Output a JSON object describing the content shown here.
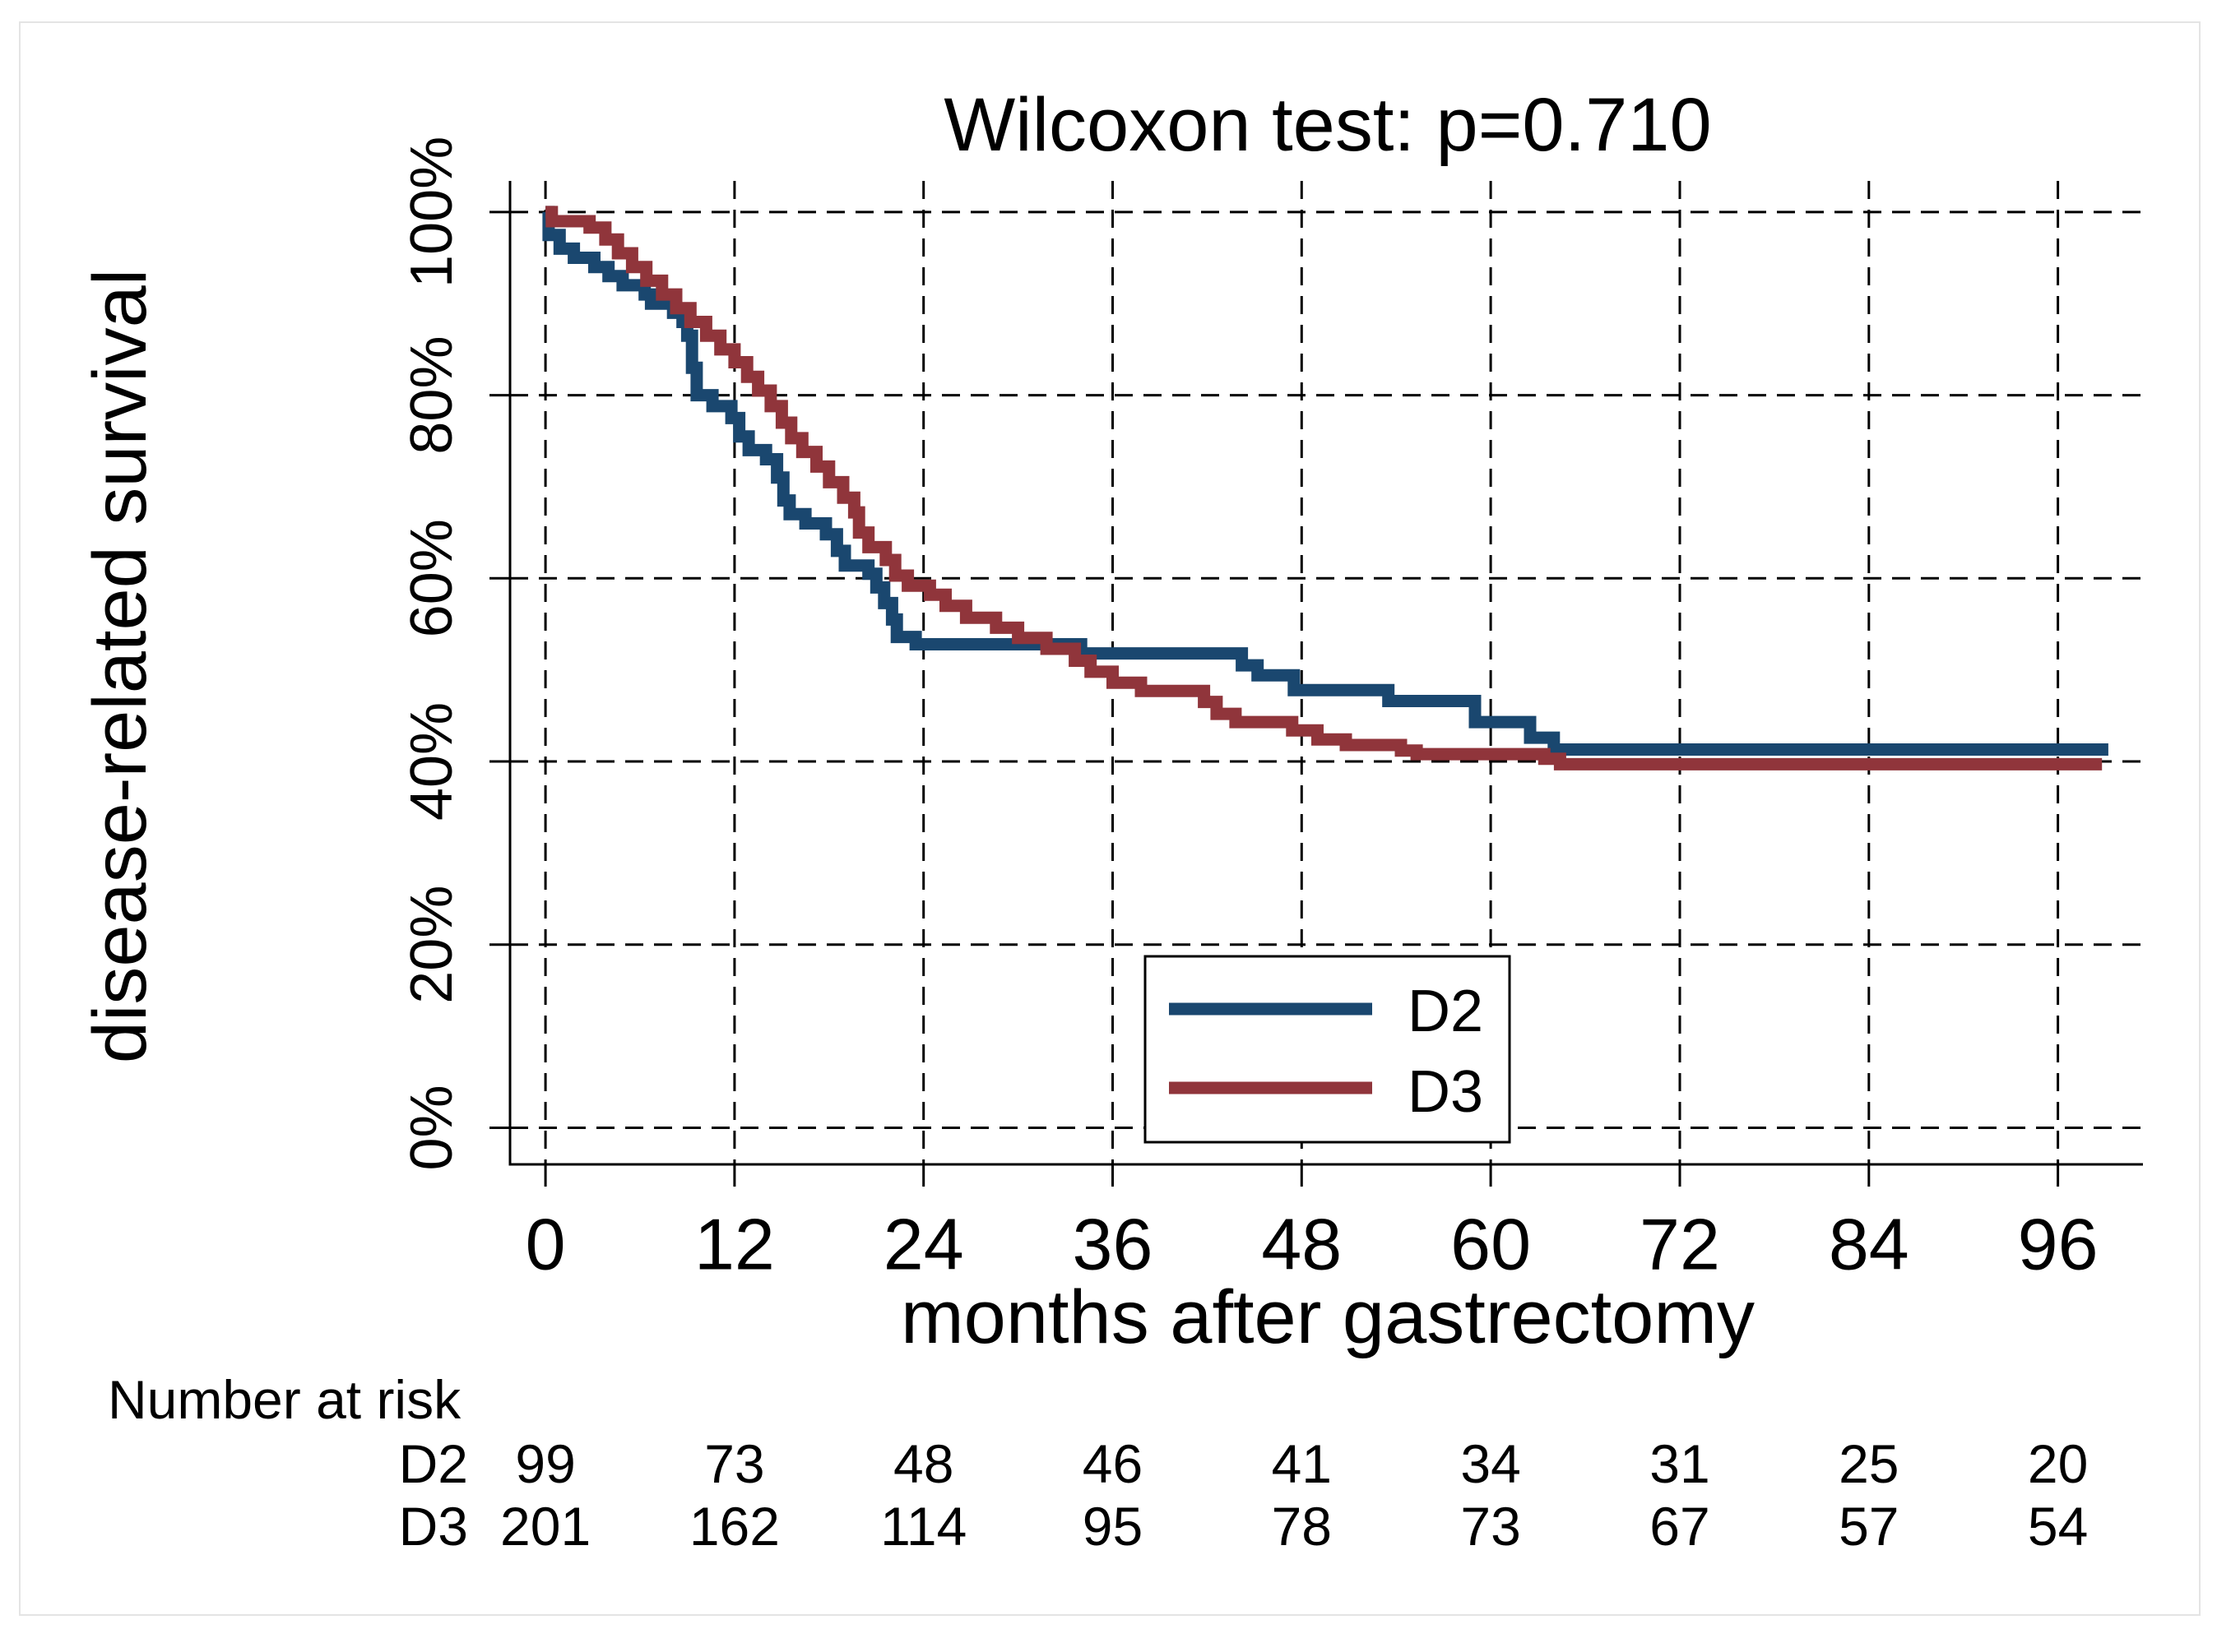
{
  "chart_data": {
    "type": "line",
    "title": "Wilcoxon test: p=0.710",
    "xlabel": "months after gastrectomy",
    "ylabel": "disease-related survival",
    "xlim": [
      -2.25,
      101.4
    ],
    "ylim": [
      -4,
      103.4
    ],
    "grid": true,
    "legend_position": "bottom-center",
    "x_ticks": [
      {
        "value": 0,
        "label": "0"
      },
      {
        "value": 12,
        "label": "12"
      },
      {
        "value": 24,
        "label": "24"
      },
      {
        "value": 36,
        "label": "36"
      },
      {
        "value": 48,
        "label": "48"
      },
      {
        "value": 60,
        "label": "60"
      },
      {
        "value": 72,
        "label": "72"
      },
      {
        "value": 84,
        "label": "84"
      },
      {
        "value": 96,
        "label": "96"
      }
    ],
    "y_ticks": [
      {
        "value": 0,
        "label": "0%"
      },
      {
        "value": 20,
        "label": "20%"
      },
      {
        "value": 40,
        "label": "40%"
      },
      {
        "value": 60,
        "label": "60%"
      },
      {
        "value": 80,
        "label": "80%"
      },
      {
        "value": 100,
        "label": "100%"
      }
    ],
    "series": [
      {
        "name": "D2",
        "color": "#1a476f",
        "end": 99.2,
        "steps": [
          [
            0,
            100
          ],
          [
            0.2,
            97.5
          ],
          [
            0.9,
            96
          ],
          [
            1.8,
            95
          ],
          [
            3.1,
            94
          ],
          [
            4.0,
            93
          ],
          [
            4.9,
            92
          ],
          [
            6.3,
            91
          ],
          [
            6.7,
            90
          ],
          [
            8.1,
            89
          ],
          [
            8.7,
            88
          ],
          [
            9.0,
            86.5
          ],
          [
            9.3,
            83
          ],
          [
            9.6,
            80
          ],
          [
            10.6,
            78.8
          ],
          [
            11.8,
            77.5
          ],
          [
            12.3,
            75.5
          ],
          [
            12.9,
            74
          ],
          [
            14.0,
            73
          ],
          [
            14.7,
            71
          ],
          [
            15.1,
            68.5
          ],
          [
            15.5,
            67
          ],
          [
            16.5,
            66
          ],
          [
            17.8,
            64.8
          ],
          [
            18.5,
            63
          ],
          [
            19.0,
            61.4
          ],
          [
            20.5,
            60.5
          ],
          [
            21.0,
            59
          ],
          [
            21.5,
            57.3
          ],
          [
            22.0,
            55.5
          ],
          [
            22.3,
            53.6
          ],
          [
            23.5,
            52.8
          ],
          [
            34.0,
            51.8
          ],
          [
            44.2,
            50.5
          ],
          [
            45.2,
            49.4
          ],
          [
            47.5,
            47.8
          ],
          [
            53.5,
            46.6
          ],
          [
            59.0,
            44.3
          ],
          [
            62.5,
            42.6
          ],
          [
            64.0,
            41.3
          ]
        ]
      },
      {
        "name": "D3",
        "color": "#90353b",
        "end": 98.8,
        "steps": [
          [
            0,
            100
          ],
          [
            0.4,
            99
          ],
          [
            2.8,
            98.3
          ],
          [
            3.8,
            97
          ],
          [
            4.6,
            95.5
          ],
          [
            5.5,
            94
          ],
          [
            6.4,
            92.5
          ],
          [
            7.4,
            91
          ],
          [
            8.3,
            89.5
          ],
          [
            9.2,
            88
          ],
          [
            10.2,
            86.5
          ],
          [
            11.1,
            85
          ],
          [
            12.0,
            83.6
          ],
          [
            12.8,
            82
          ],
          [
            13.5,
            80.5
          ],
          [
            14.3,
            78.8
          ],
          [
            15.0,
            77
          ],
          [
            15.6,
            75.3
          ],
          [
            16.3,
            73.8
          ],
          [
            17.2,
            72.2
          ],
          [
            18.0,
            70.5
          ],
          [
            18.9,
            68.8
          ],
          [
            19.6,
            67.2
          ],
          [
            19.9,
            65
          ],
          [
            20.5,
            63.4
          ],
          [
            21.6,
            62
          ],
          [
            22.2,
            60.3
          ],
          [
            23.0,
            59.2
          ],
          [
            24.4,
            58.2
          ],
          [
            25.4,
            57
          ],
          [
            26.7,
            55.7
          ],
          [
            28.6,
            54.6
          ],
          [
            30.0,
            53.5
          ],
          [
            31.8,
            52.3
          ],
          [
            33.6,
            51
          ],
          [
            34.6,
            49.8
          ],
          [
            36.0,
            48.6
          ],
          [
            37.8,
            47.7
          ],
          [
            41.8,
            46.5
          ],
          [
            42.6,
            45.2
          ],
          [
            43.8,
            44.3
          ],
          [
            47.4,
            43.4
          ],
          [
            49.0,
            42.4
          ],
          [
            50.8,
            41.8
          ],
          [
            54.3,
            41.2
          ],
          [
            55.3,
            40.8
          ],
          [
            63.4,
            40.3
          ],
          [
            64.4,
            39.7
          ]
        ]
      }
    ],
    "risk_table": {
      "title": "Number at risk",
      "times": [
        0,
        12,
        24,
        36,
        48,
        60,
        72,
        84,
        96
      ],
      "rows": [
        {
          "label": "D2",
          "values": [
            99,
            73,
            48,
            46,
            41,
            34,
            31,
            25,
            20
          ]
        },
        {
          "label": "D3",
          "values": [
            201,
            162,
            114,
            95,
            78,
            73,
            67,
            57,
            54
          ]
        }
      ]
    }
  }
}
